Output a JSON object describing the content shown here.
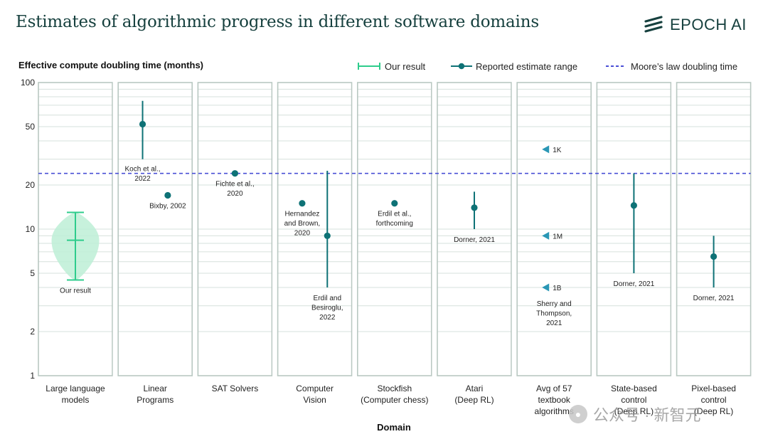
{
  "header": {
    "title": "Estimates of algorithmic progress in different software domains",
    "logo_text": "EPOCH AI"
  },
  "watermark": {
    "text": "公众号 · 新智元"
  },
  "chart_data": {
    "type": "scatter",
    "title": "Estimates of algorithmic progress in different software domains",
    "ylabel": "Effective compute doubling time (months)",
    "xlabel": "Domain",
    "yscale": "log",
    "ylim": [
      1,
      100
    ],
    "yticks": [
      1,
      2,
      5,
      10,
      20,
      50,
      100
    ],
    "grid": true,
    "legend": [
      {
        "label": "Our result",
        "kind": "our-result"
      },
      {
        "label": "Reported estimate range",
        "kind": "range"
      },
      {
        "label": "Moore’s law doubling time",
        "kind": "dashed"
      }
    ],
    "moores_law_months": 24,
    "categories": [
      [
        "Large language",
        "models"
      ],
      [
        "Linear",
        "Programs"
      ],
      [
        "SAT Solvers"
      ],
      [
        "Computer",
        "Vision"
      ],
      [
        "Stockfish",
        "(Computer chess)"
      ],
      [
        "Atari",
        "(Deep RL)"
      ],
      [
        "Avg of 57",
        "textbook",
        "algorithms"
      ],
      [
        "State-based",
        "control",
        "(Deep RL)"
      ],
      [
        "Pixel-based",
        "control",
        "(Deep RL)"
      ]
    ],
    "our_result": {
      "panel": 0,
      "low": 4.5,
      "median": 8.4,
      "high": 13,
      "violin_low": 4.5,
      "violin_high": 13,
      "label": [
        "Our result"
      ]
    },
    "estimates": [
      {
        "panel": 1,
        "offset": -0.2,
        "value": 52,
        "low": 30,
        "high": 75,
        "label": [
          "Koch et al.,",
          "2022"
        ],
        "label_pos": "below-left"
      },
      {
        "panel": 1,
        "offset": 0.2,
        "value": 17,
        "low": null,
        "high": null,
        "label": [
          "Bixby, 2002"
        ],
        "label_pos": "below"
      },
      {
        "panel": 2,
        "offset": 0.0,
        "value": 24,
        "low": null,
        "high": null,
        "label": [
          "Fichte et al.,",
          "2020"
        ],
        "label_pos": "below"
      },
      {
        "panel": 3,
        "offset": -0.2,
        "value": 15,
        "low": null,
        "high": null,
        "label": [
          "Hernandez",
          "and Brown,",
          "2020"
        ],
        "label_pos": "below"
      },
      {
        "panel": 3,
        "offset": 0.2,
        "value": 9,
        "low": 4,
        "high": 25,
        "label": [
          "Erdil and",
          "Besiroglu,",
          "2022"
        ],
        "label_pos": "below-range"
      },
      {
        "panel": 4,
        "offset": 0.0,
        "value": 15,
        "low": null,
        "high": null,
        "label": [
          "Erdil et al.,",
          "forthcoming"
        ],
        "label_pos": "below"
      },
      {
        "panel": 5,
        "offset": 0.0,
        "value": 14,
        "low": 10,
        "high": 18,
        "label": [
          "Dorner, 2021"
        ],
        "label_pos": "below-range"
      },
      {
        "panel": 7,
        "offset": 0.0,
        "value": 14.5,
        "low": 5,
        "high": 24,
        "label": [
          "Dorner, 2021"
        ],
        "label_pos": "below-range"
      },
      {
        "panel": 8,
        "offset": 0.0,
        "value": 6.5,
        "low": 4,
        "high": 9,
        "label": [
          "Dorner, 2021"
        ],
        "label_pos": "below-range"
      }
    ],
    "markers": [
      {
        "panel": 6,
        "value": 35,
        "label": "1K"
      },
      {
        "panel": 6,
        "value": 9,
        "label": "1M"
      },
      {
        "panel": 6,
        "value": 4,
        "label": "1B"
      }
    ],
    "marker_caption": {
      "panel": 6,
      "value": 4,
      "lines": [
        "Sherry and",
        "Thompson,",
        "2021"
      ]
    },
    "colors": {
      "teal": "#0e7276",
      "our_result": "#2ecc8c",
      "violin_fill": "#bdeed6",
      "moore": "#4a4fd6",
      "panel_border": "#b9c8c2",
      "grid": "#d6e0dc",
      "marker": "#2a97b5"
    }
  }
}
